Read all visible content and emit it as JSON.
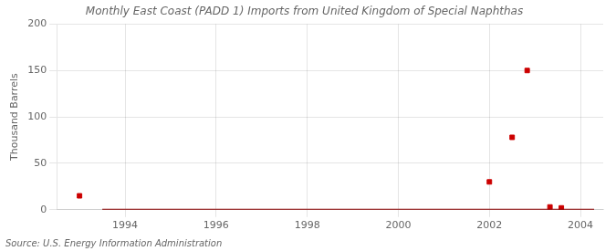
{
  "chart_data": {
    "type": "line",
    "title": "Monthly East Coast (PADD 1) Imports from United Kingdom of Special Naphthas",
    "ylabel": "Thousand Barrels",
    "source": "Source: U.S. Energy Information Administration",
    "xlim": [
      1992.5,
      2004.5
    ],
    "xticks": [
      1994,
      1996,
      1998,
      2000,
      2002,
      2004
    ],
    "ylim": [
      0,
      200
    ],
    "yticks": [
      0,
      50,
      100,
      150,
      200
    ],
    "grid": true,
    "series": [
      {
        "type": "line",
        "color": "#8b0000",
        "x": [
          1993.5,
          2004.3
        ],
        "values": [
          0,
          0
        ]
      },
      {
        "type": "scatter",
        "marker": "square",
        "color": "#cc0000",
        "x": [
          1993.0,
          2002.0,
          2002.5,
          2002.83,
          2003.33,
          2003.58
        ],
        "values": [
          15,
          30,
          78,
          150,
          3,
          2
        ]
      }
    ]
  }
}
